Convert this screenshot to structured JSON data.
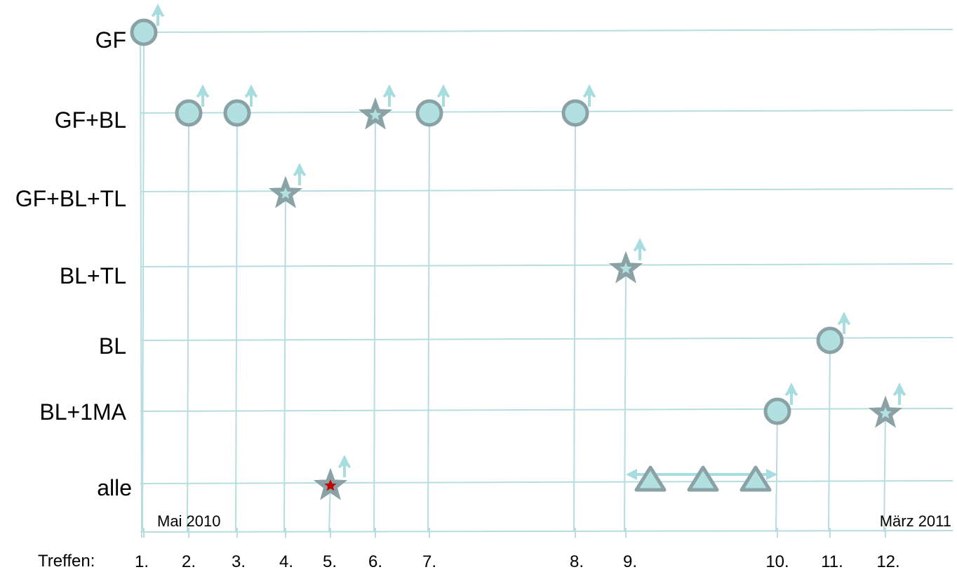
{
  "rows": [
    "GF",
    "GF+BL",
    "GF+BL+TL",
    "BL+TL",
    "BL",
    "BL+1MA",
    "alle"
  ],
  "meetings_label": "Treffen:",
  "meetings": [
    "1.",
    "2.",
    "3.",
    "4.",
    "5.",
    "6.",
    "7.",
    "8.",
    "9.",
    "10.",
    "11.",
    "12."
  ],
  "start_date": "Mai 2010",
  "end_date": "März 2011",
  "colors": {
    "grid": "#b7dde0",
    "marker_fill": "#b2dfe0",
    "marker_stroke": "#8aa2a6",
    "arrow": "#a8dde0",
    "highlight": "#c00000"
  },
  "chart_data": {
    "type": "scatter",
    "x_categories": [
      "1.",
      "2.",
      "3.",
      "4.",
      "5.",
      "6.",
      "7.",
      "8.",
      "9.",
      "10.",
      "11.",
      "12."
    ],
    "y_categories": [
      "GF",
      "GF+BL",
      "GF+BL+TL",
      "BL+TL",
      "BL",
      "BL+1MA",
      "alle"
    ],
    "points": [
      {
        "meeting": "1.",
        "row": "GF",
        "marker": "circle"
      },
      {
        "meeting": "2.",
        "row": "GF+BL",
        "marker": "circle"
      },
      {
        "meeting": "3.",
        "row": "GF+BL",
        "marker": "circle"
      },
      {
        "meeting": "4.",
        "row": "GF+BL+TL",
        "marker": "star"
      },
      {
        "meeting": "5.",
        "row": "alle",
        "marker": "star",
        "highlight": true
      },
      {
        "meeting": "6.",
        "row": "GF+BL",
        "marker": "star"
      },
      {
        "meeting": "7.",
        "row": "GF+BL",
        "marker": "circle"
      },
      {
        "meeting": "8.",
        "row": "GF+BL",
        "marker": "circle"
      },
      {
        "meeting": "9.",
        "row": "BL+TL",
        "marker": "star"
      },
      {
        "meeting": "10.",
        "row": "BL+1MA",
        "marker": "circle"
      },
      {
        "meeting": "11.",
        "row": "BL",
        "marker": "circle"
      },
      {
        "meeting": "12.",
        "row": "BL+1MA",
        "marker": "star"
      }
    ],
    "range_markers": {
      "row": "alle",
      "between": [
        "9.",
        "10."
      ],
      "marker": "triangle",
      "count": 3
    }
  }
}
